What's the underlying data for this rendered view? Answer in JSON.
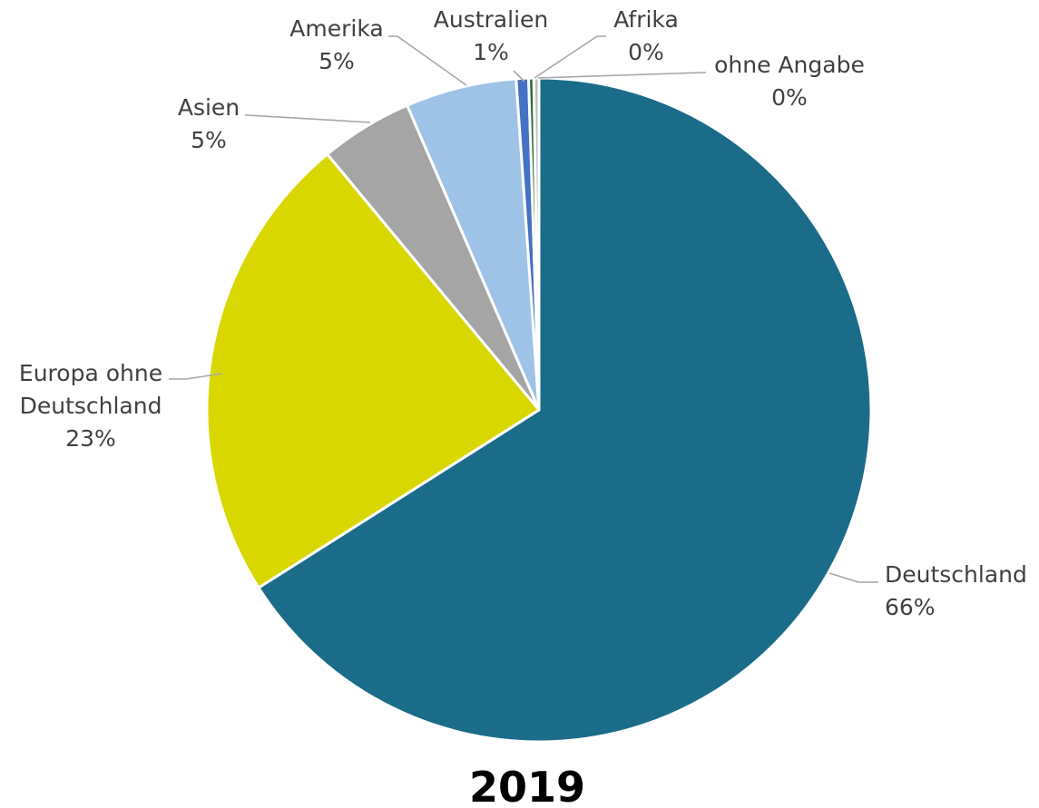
{
  "chart_data": {
    "type": "pie",
    "title": "2019",
    "slices": [
      {
        "label": "Deutschland",
        "value_label": "66%",
        "value": 66.0,
        "color": "#1b6c89"
      },
      {
        "label": "Europa ohne Deutschland",
        "value_label": "23%",
        "value": 23.0,
        "color": "#d8d800"
      },
      {
        "label": "Asien",
        "value_label": "5%",
        "value": 4.5,
        "color": "#a5a5a5"
      },
      {
        "label": "Amerika",
        "value_label": "5%",
        "value": 5.4,
        "color": "#9fc3e6"
      },
      {
        "label": "Australien",
        "value_label": "1%",
        "value": 0.6,
        "color": "#4472c4"
      },
      {
        "label": "Afrika",
        "value_label": "0%",
        "value": 0.25,
        "color": "#2e6b3a"
      },
      {
        "label": "ohne Angabe",
        "value_label": "0%",
        "value": 0.25,
        "color": "#bfbfbf"
      }
    ],
    "legend": "none",
    "labels": "outside, with leader lines"
  }
}
